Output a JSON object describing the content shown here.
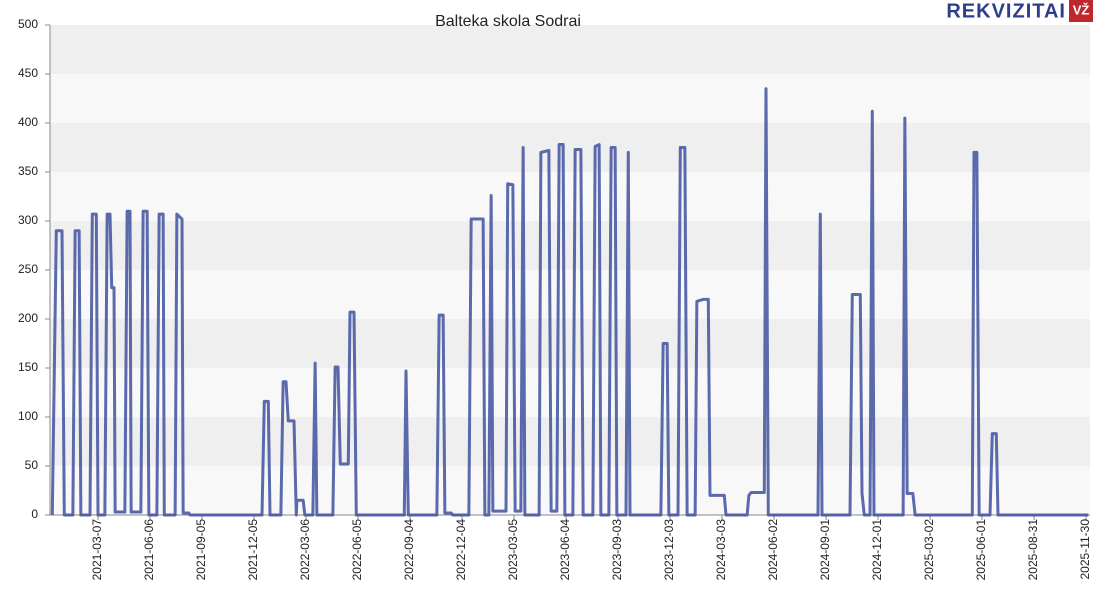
{
  "logo": {
    "brand": "REKVIZITAI",
    "badge": "VŽ"
  },
  "chart_data": {
    "type": "line",
    "title": "Balteka skola Sodrai",
    "color": "#4050a0",
    "x": [
      "2020-12-17",
      "2020-12-24",
      "2021-01-03",
      "2021-01-07",
      "2021-01-22",
      "2021-01-26",
      "2021-02-02",
      "2021-02-05",
      "2021-02-21",
      "2021-02-25",
      "2021-03-04",
      "2021-03-07",
      "2021-03-19",
      "2021-03-23",
      "2021-03-28",
      "2021-03-31",
      "2021-04-04",
      "2021-04-06",
      "2021-04-23",
      "2021-04-27",
      "2021-05-02",
      "2021-05-04",
      "2021-05-21",
      "2021-05-25",
      "2021-06-01",
      "2021-06-04",
      "2021-06-18",
      "2021-06-22",
      "2021-06-29",
      "2021-07-01",
      "2021-07-20",
      "2021-07-23",
      "2021-08-01",
      "2021-08-03",
      "2021-08-13",
      "2021-08-15",
      "2021-12-19",
      "2021-12-23",
      "2021-12-30",
      "2022-01-02",
      "2022-01-21",
      "2022-01-25",
      "2022-01-30",
      "2022-02-03",
      "2022-02-13",
      "2022-02-17",
      "2022-02-18",
      "2022-03-01",
      "2022-03-04",
      "2022-03-18",
      "2022-03-22",
      "2022-03-25",
      "2022-04-22",
      "2022-04-26",
      "2022-05-01",
      "2022-05-05",
      "2022-05-19",
      "2022-05-22",
      "2022-05-29",
      "2022-06-02",
      "2022-08-25",
      "2022-08-28",
      "2022-09-01",
      "2022-10-21",
      "2022-10-25",
      "2022-11-01",
      "2022-11-04",
      "2022-11-15",
      "2022-11-18",
      "2022-12-16",
      "2022-12-20",
      "2023-01-10",
      "2023-01-13",
      "2023-01-20",
      "2023-01-24",
      "2023-01-27",
      "2023-02-19",
      "2023-02-22",
      "2023-03-03",
      "2023-03-07",
      "2023-03-17",
      "2023-03-21",
      "2023-03-24",
      "2023-04-18",
      "2023-04-21",
      "2023-05-05",
      "2023-05-09",
      "2023-05-19",
      "2023-05-23",
      "2023-05-30",
      "2023-06-02",
      "2023-06-16",
      "2023-06-20",
      "2023-06-30",
      "2023-07-04",
      "2023-07-21",
      "2023-07-25",
      "2023-08-01",
      "2023-08-04",
      "2023-08-18",
      "2023-08-22",
      "2023-08-29",
      "2023-09-01",
      "2023-09-17",
      "2023-09-21",
      "2023-09-24",
      "2023-11-17",
      "2023-11-21",
      "2023-11-28",
      "2023-12-01",
      "2023-12-17",
      "2023-12-21",
      "2023-12-29",
      "2024-01-02",
      "2024-01-16",
      "2024-01-19",
      "2024-01-30",
      "2024-02-08",
      "2024-02-11",
      "2024-03-07",
      "2024-03-10",
      "2024-04-16",
      "2024-04-19",
      "2024-04-23",
      "2024-05-16",
      "2024-05-19",
      "2024-05-23",
      "2024-08-18",
      "2024-08-22",
      "2024-08-25",
      "2024-10-13",
      "2024-10-17",
      "2024-10-31",
      "2024-11-03",
      "2024-11-07",
      "2024-11-17",
      "2024-11-21",
      "2024-11-24",
      "2025-01-14",
      "2025-01-17",
      "2025-01-21",
      "2025-01-31",
      "2025-02-04",
      "2025-05-15",
      "2025-05-18",
      "2025-05-23",
      "2025-05-27",
      "2025-06-15",
      "2025-06-19",
      "2025-06-26",
      "2025-06-29",
      "2025-12-04"
    ],
    "values": [
      0,
      290,
      290,
      0,
      0,
      290,
      290,
      0,
      0,
      307,
      307,
      0,
      0,
      307,
      307,
      232,
      232,
      3,
      3,
      310,
      310,
      3,
      3,
      310,
      310,
      0,
      0,
      307,
      307,
      0,
      0,
      307,
      302,
      2,
      2,
      0,
      0,
      116,
      116,
      0,
      0,
      136,
      136,
      96,
      96,
      0,
      15,
      15,
      0,
      0,
      155,
      0,
      0,
      151,
      151,
      52,
      52,
      207,
      207,
      0,
      0,
      147,
      0,
      0,
      204,
      204,
      2,
      2,
      0,
      0,
      302,
      302,
      0,
      0,
      326,
      4,
      4,
      338,
      337,
      4,
      4,
      375,
      0,
      0,
      370,
      372,
      4,
      4,
      378,
      378,
      0,
      0,
      373,
      373,
      0,
      0,
      376,
      378,
      0,
      0,
      375,
      375,
      0,
      0,
      370,
      0,
      0,
      175,
      175,
      0,
      0,
      375,
      375,
      0,
      0,
      218,
      220,
      220,
      20,
      20,
      0,
      0,
      20,
      23,
      23,
      435,
      0,
      0,
      307,
      0,
      0,
      225,
      225,
      22,
      0,
      0,
      412,
      0,
      0,
      405,
      22,
      22,
      0,
      0,
      370,
      370,
      0,
      0,
      83,
      83,
      0,
      0
    ],
    "xlim": [
      "2020-12-13",
      "2025-12-07"
    ],
    "xticks": [
      "2021-03-07",
      "2021-06-06",
      "2021-09-05",
      "2021-12-05",
      "2022-03-06",
      "2022-06-05",
      "2022-09-04",
      "2022-12-04",
      "2023-03-05",
      "2023-06-04",
      "2023-09-03",
      "2023-12-03",
      "2024-03-03",
      "2024-06-02",
      "2024-09-01",
      "2024-12-01",
      "2025-03-02",
      "2025-06-01",
      "2025-08-31",
      "2025-11-30"
    ],
    "ylim": [
      0,
      500
    ],
    "yticks": [
      0,
      50,
      100,
      150,
      200,
      250,
      300,
      350,
      400,
      450,
      500
    ],
    "grid": true
  }
}
